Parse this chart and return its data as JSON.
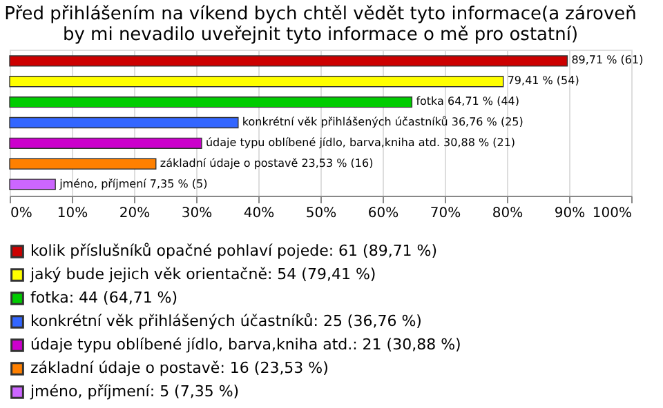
{
  "chart_data": {
    "type": "bar",
    "orientation": "horizontal",
    "title": [
      "Před přihlášením na víkend bych chtěl vědět tyto informace(a zároveň",
      "by mi nevadilo uveřejnit tyto informace o mě pro ostatní)"
    ],
    "categories": [
      null,
      null,
      null,
      null,
      null,
      null,
      null
    ],
    "series": [
      {
        "name": "kolik příslušníků opačné pohlaví pojede: 61 (89,71 %)",
        "color": "#cc0000",
        "values": [
          89.71,
          null,
          null,
          null,
          null,
          null,
          null
        ],
        "value_labels": [
          "89,71 % (61)",
          null,
          null,
          null,
          null,
          null,
          null
        ]
      },
      {
        "name": "jaký bude jejich věk orientačně: 54 (79,41 %)",
        "color": "#ffff00",
        "values": [
          null,
          79.41,
          null,
          null,
          null,
          null,
          null
        ],
        "value_labels": [
          null,
          "79,41 % (54)",
          null,
          null,
          null,
          null,
          null
        ]
      },
      {
        "name": "fotka: 44 (64,71 %)",
        "color": "#00cc00",
        "values": [
          null,
          null,
          64.71,
          null,
          null,
          null,
          null
        ],
        "value_labels": [
          null,
          null,
          "fotka 64,71 % (44)",
          null,
          null,
          null,
          null
        ]
      },
      {
        "name": "konkrétní věk přihlášených účastníků: 25 (36,76 %)",
        "color": "#3366ff",
        "values": [
          null,
          null,
          null,
          36.76,
          null,
          null,
          null
        ],
        "value_labels": [
          null,
          null,
          null,
          "konkrétní věk přihlášených účastníků 36,76 % (25)",
          null,
          null,
          null
        ]
      },
      {
        "name": "údaje typu oblíbené jídlo, barva,kniha atd.: 21 (30,88 %)",
        "color": "#cc00cc",
        "values": [
          null,
          null,
          null,
          null,
          30.88,
          null,
          null
        ],
        "value_labels": [
          null,
          null,
          null,
          null,
          "údaje typu oblíbené jídlo, barva,kniha atd. 30,88 % (21)",
          null,
          null
        ]
      },
      {
        "name": "základní údaje o postavě: 16 (23,53 %)",
        "color": "#ff8000",
        "values": [
          null,
          null,
          null,
          null,
          null,
          23.53,
          null
        ],
        "value_labels": [
          null,
          null,
          null,
          null,
          null,
          "základní údaje o postavě 23,53 % (16)",
          null
        ]
      },
      {
        "name": "jméno, příjmení: 5 (7,35 %)",
        "color": "#cc66ff",
        "values": [
          null,
          null,
          null,
          null,
          null,
          null,
          7.35
        ],
        "value_labels": [
          null,
          null,
          null,
          null,
          null,
          null,
          "jméno, příjmení 7,35 % (5)"
        ]
      }
    ],
    "xlim": [
      0,
      100
    ],
    "xticks": [
      {
        "value": 0,
        "label": "0%"
      },
      {
        "value": 10,
        "label": "10%"
      },
      {
        "value": 20,
        "label": "20%"
      },
      {
        "value": 30,
        "label": "30%"
      },
      {
        "value": 40,
        "label": "40%"
      },
      {
        "value": 50,
        "label": "50%"
      },
      {
        "value": 60,
        "label": "60%"
      },
      {
        "value": 70,
        "label": "70%"
      },
      {
        "value": 80,
        "label": "80%"
      },
      {
        "value": 90,
        "label": "90%"
      },
      {
        "value": 100,
        "label": "100%"
      }
    ],
    "grid": "x",
    "legend": "bottom",
    "tick_labels": "x"
  }
}
